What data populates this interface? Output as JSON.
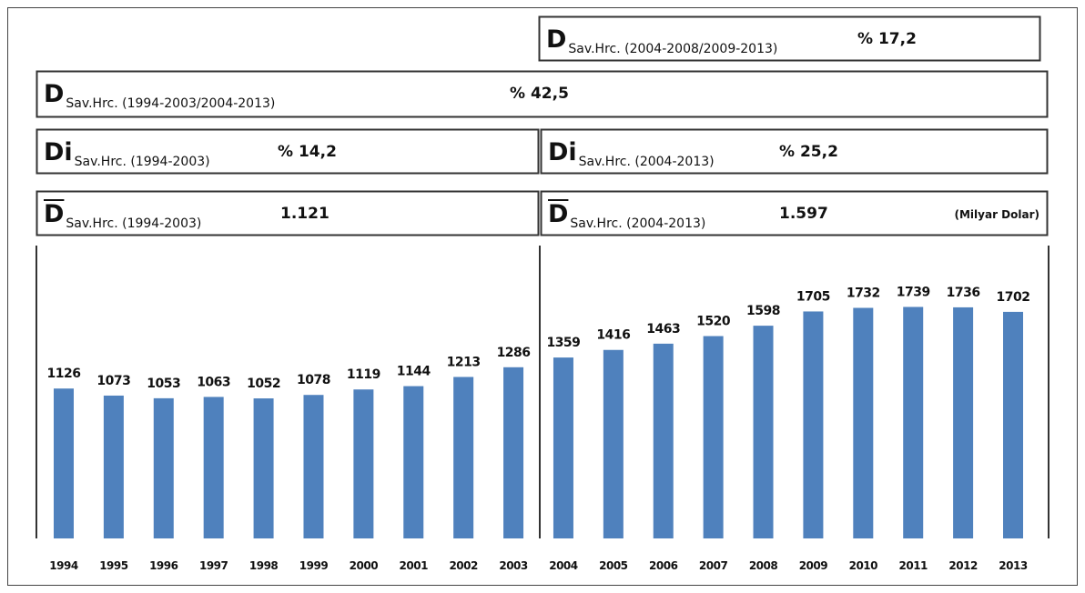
{
  "chart_data": {
    "type": "bar",
    "categories": [
      "1994",
      "1995",
      "1996",
      "1997",
      "1998",
      "1999",
      "2000",
      "2001",
      "2002",
      "2003",
      "2004",
      "2005",
      "2006",
      "2007",
      "2008",
      "2009",
      "2010",
      "2011",
      "2012",
      "2013"
    ],
    "values": [
      1126,
      1073,
      1053,
      1063,
      1052,
      1078,
      1119,
      1144,
      1213,
      1286,
      1359,
      1416,
      1463,
      1520,
      1598,
      1705,
      1732,
      1739,
      1736,
      1702
    ],
    "color": "#4f81bd",
    "ylim": [
      0,
      2200
    ]
  },
  "boxes": [
    {
      "symbol": "D",
      "subscript": "Sav.Hrc. (2004-2008/2009-2013)",
      "value": "% 17,2"
    },
    {
      "symbol": "D",
      "subscript": "Sav.Hrc. (1994-2003/2004-2013)",
      "value": "% 42,5"
    },
    {
      "symbol": "Di",
      "subscript": "Sav.Hrc. (1994-2003)",
      "value": "% 14,2"
    },
    {
      "symbol": "Di",
      "subscript": "Sav.Hrc. (2004-2013)",
      "value": "% 25,2"
    },
    {
      "symbol": "D",
      "subscript": "Sav.Hrc. (1994-2003)",
      "value": "1.121"
    },
    {
      "symbol": "D",
      "subscript": "Sav.Hrc. (2004-2013)",
      "value": "1.597",
      "note": "(Milyar Dolar)"
    }
  ]
}
